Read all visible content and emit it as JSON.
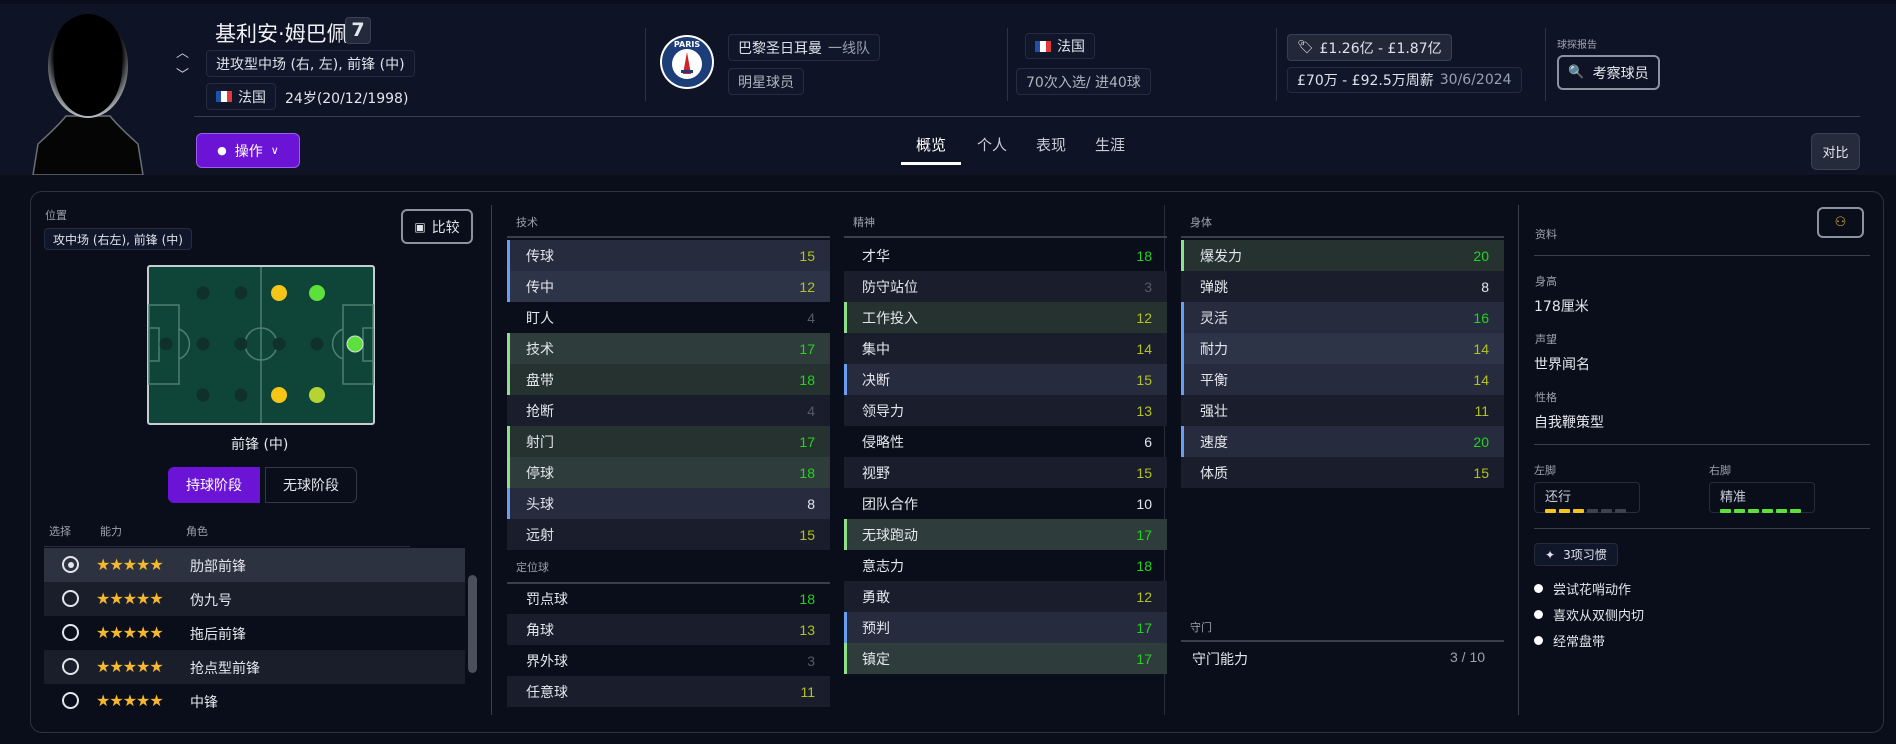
{
  "player": {
    "name": "基利安·姆巴佩",
    "number": "7",
    "positions": "进攻型中场 (右, 左), 前锋 (中)",
    "nationality": "法国",
    "age_dob": "24岁(20/12/1998)"
  },
  "club": {
    "crest_text": "PARIS",
    "name": "巴黎圣日耳曼",
    "squad": "一线队",
    "status": "明星球员"
  },
  "international": {
    "nation": "法国",
    "caps_goals": "70次入选/ 进40球"
  },
  "contract": {
    "value": "£1.26亿 - £1.87亿",
    "wage": "£70万 - £92.5万周薪",
    "expiry": "30/6/2024"
  },
  "scout": {
    "label": "球探报告",
    "button": "考察球员"
  },
  "actions_button": "操作",
  "tabs": [
    {
      "label": "概览",
      "active": true
    },
    {
      "label": "个人",
      "active": false
    },
    {
      "label": "表现",
      "active": false
    },
    {
      "label": "生涯",
      "active": false
    }
  ],
  "compare_header_button": "对比",
  "position_panel": {
    "label": "位置",
    "positions": "攻中场 (右左), 前锋 (中)",
    "compare_button": "比较",
    "selected_position": "前锋 (中)",
    "phase_tabs": [
      {
        "label": "持球阶段",
        "active": true
      },
      {
        "label": "无球阶段",
        "active": false
      }
    ],
    "pitch_colors": {
      "none": "#10302c",
      "competent": "#f5c518",
      "accomplished": "#b4d433",
      "natural": "#5ee03c"
    },
    "pitch_dots": [
      {
        "row": 0,
        "col": 1,
        "level": "none"
      },
      {
        "row": 0,
        "col": 2,
        "level": "none"
      },
      {
        "row": 0,
        "col": 3,
        "level": "competent"
      },
      {
        "row": 0,
        "col": 4,
        "level": "natural"
      },
      {
        "row": 1,
        "col": 0,
        "level": "none"
      },
      {
        "row": 1,
        "col": 1,
        "level": "none"
      },
      {
        "row": 1,
        "col": 2,
        "level": "none"
      },
      {
        "row": 1,
        "col": 3,
        "level": "none"
      },
      {
        "row": 1,
        "col": 4,
        "level": "none"
      },
      {
        "row": 1,
        "col": 5,
        "level": "natural"
      },
      {
        "row": 2,
        "col": 1,
        "level": "none"
      },
      {
        "row": 2,
        "col": 2,
        "level": "none"
      },
      {
        "row": 2,
        "col": 3,
        "level": "competent"
      },
      {
        "row": 2,
        "col": 4,
        "level": "accomplished"
      }
    ],
    "role_headers": {
      "select": "选择",
      "ability": "能力",
      "role": "角色"
    },
    "roles": [
      {
        "name": "肋部前锋",
        "stars": 5,
        "selected": true
      },
      {
        "name": "伪九号",
        "stars": 5,
        "selected": false
      },
      {
        "name": "拖后前锋",
        "stars": 5,
        "selected": false
      },
      {
        "name": "抢点型前锋",
        "stars": 5,
        "selected": false
      },
      {
        "name": "中锋",
        "stars": 5,
        "selected": false
      }
    ]
  },
  "attributes": {
    "technical": {
      "title": "技术",
      "items": [
        {
          "name": "传球",
          "value": 15,
          "key": "secondary"
        },
        {
          "name": "传中",
          "value": 12,
          "key": "secondary"
        },
        {
          "name": "盯人",
          "value": 4,
          "key": ""
        },
        {
          "name": "技术",
          "value": 17,
          "key": "primary"
        },
        {
          "name": "盘带",
          "value": 18,
          "key": "primary"
        },
        {
          "name": "抢断",
          "value": 4,
          "key": ""
        },
        {
          "name": "射门",
          "value": 17,
          "key": "primary"
        },
        {
          "name": "停球",
          "value": 18,
          "key": "primary"
        },
        {
          "name": "头球",
          "value": 8,
          "key": "secondary"
        },
        {
          "name": "远射",
          "value": 15,
          "key": ""
        }
      ]
    },
    "set_pieces": {
      "title": "定位球",
      "items": [
        {
          "name": "罚点球",
          "value": 18,
          "key": ""
        },
        {
          "name": "角球",
          "value": 13,
          "key": ""
        },
        {
          "name": "界外球",
          "value": 3,
          "key": ""
        },
        {
          "name": "任意球",
          "value": 11,
          "key": ""
        }
      ]
    },
    "mental": {
      "title": "精神",
      "items": [
        {
          "name": "才华",
          "value": 18,
          "key": ""
        },
        {
          "name": "防守站位",
          "value": 3,
          "key": ""
        },
        {
          "name": "工作投入",
          "value": 12,
          "key": "primary"
        },
        {
          "name": "集中",
          "value": 14,
          "key": ""
        },
        {
          "name": "决断",
          "value": 15,
          "key": "secondary"
        },
        {
          "name": "领导力",
          "value": 13,
          "key": ""
        },
        {
          "name": "侵略性",
          "value": 6,
          "key": ""
        },
        {
          "name": "视野",
          "value": 15,
          "key": ""
        },
        {
          "name": "团队合作",
          "value": 10,
          "key": ""
        },
        {
          "name": "无球跑动",
          "value": 17,
          "key": "primary"
        },
        {
          "name": "意志力",
          "value": 18,
          "key": ""
        },
        {
          "name": "勇敢",
          "value": 12,
          "key": ""
        },
        {
          "name": "预判",
          "value": 17,
          "key": "secondary"
        },
        {
          "name": "镇定",
          "value": 17,
          "key": "primary"
        }
      ]
    },
    "physical": {
      "title": "身体",
      "items": [
        {
          "name": "爆发力",
          "value": 20,
          "key": "primary"
        },
        {
          "name": "弹跳",
          "value": 8,
          "key": ""
        },
        {
          "name": "灵活",
          "value": 16,
          "key": "secondary"
        },
        {
          "name": "耐力",
          "value": 14,
          "key": "secondary"
        },
        {
          "name": "平衡",
          "value": 14,
          "key": "secondary"
        },
        {
          "name": "强壮",
          "value": 11,
          "key": ""
        },
        {
          "name": "速度",
          "value": 20,
          "key": "secondary"
        },
        {
          "name": "体质",
          "value": 15,
          "key": ""
        }
      ]
    },
    "goalkeeping": {
      "title": "守门",
      "label": "守门能力",
      "value": "3 / 10"
    }
  },
  "colors": {
    "accent": "#6b14d6",
    "high": "#22d41a",
    "mid": "#b3c21c",
    "low": "#555a67",
    "normal": "#e4e6ec",
    "primary_bar": "#8ee08a",
    "secondary_bar": "#6b9ef0"
  },
  "info": {
    "title": "资料",
    "height_label": "身高",
    "height": "178厘米",
    "reputation_label": "声望",
    "reputation": "世界闻名",
    "personality_label": "性格",
    "personality": "自我鞭策型",
    "left_foot_label": "左脚",
    "left_foot": "还行",
    "left_foot_level": 3,
    "right_foot_label": "右脚",
    "right_foot": "精准",
    "right_foot_level": 6,
    "foot_level_max": 6,
    "habits_button": "3项习惯",
    "habits": [
      "尝试花哨动作",
      "喜欢从双侧内切",
      "经常盘带"
    ]
  }
}
